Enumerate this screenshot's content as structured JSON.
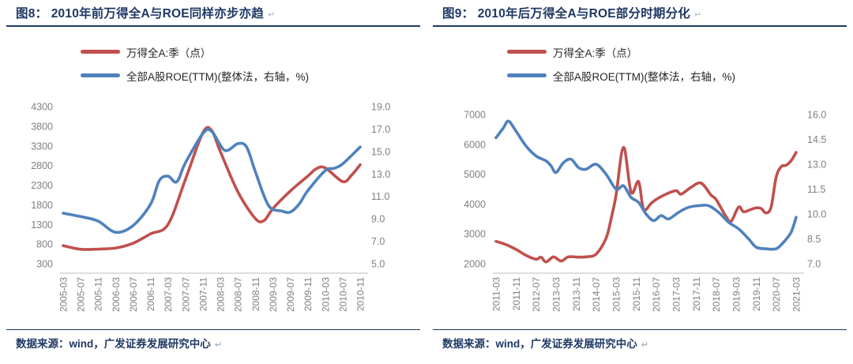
{
  "paragraph_mark": "↵",
  "colors": {
    "title_navy": "#1F3864",
    "series_red": "#C0504D",
    "series_blue": "#4F81BD",
    "tick_gray": "#808080",
    "axis_line_gray": "#D2D2D2"
  },
  "figures": [
    {
      "title": "图8： 2010年前万得全A与ROE同样亦步亦趋",
      "source": "数据来源：wind，广发证券发展研究中心",
      "legend": [
        {
          "label": "万得全A:季（点）",
          "color": "#C0504D"
        },
        {
          "label": "全部A股ROE(TTM)(整体法，右轴，%)",
          "color": "#4F81BD"
        }
      ],
      "chart_data": {
        "type": "line",
        "x_unit": "months since 2005-03",
        "x_max_months": 68,
        "x_tick_step_months": 4,
        "x_tick_labels": [
          "2005-03",
          "2005-07",
          "2005-11",
          "2006-03",
          "2006-07",
          "2006-11",
          "2007-03",
          "2007-07",
          "2007-11",
          "2008-03",
          "2008-07",
          "2008-11",
          "2009-03",
          "2009-07",
          "2009-11",
          "2010-03",
          "2010-07",
          "2010-11"
        ],
        "left_axis": {
          "min": 300,
          "max": 4300,
          "decimals": 0,
          "ticks": [
            300,
            800,
            1300,
            1800,
            2300,
            2800,
            3300,
            3800,
            4300
          ]
        },
        "right_axis": {
          "min": 5.0,
          "max": 19.0,
          "decimals": 1,
          "ticks": [
            5.0,
            7.0,
            9.0,
            11.0,
            13.0,
            15.0,
            17.0,
            19.0
          ]
        },
        "grid": false,
        "legend_position": "top-left",
        "series": [
          {
            "name": "万得全A:季（点）",
            "axis": "left",
            "color": "#C0504D",
            "points": [
              [
                0,
                760
              ],
              [
                4,
                668
              ],
              [
                8,
                672
              ],
              [
                12,
                700
              ],
              [
                16,
                820
              ],
              [
                20,
                1060
              ],
              [
                24,
                1300
              ],
              [
                28,
                2450
              ],
              [
                32,
                3640
              ],
              [
                34,
                3690
              ],
              [
                36,
                3150
              ],
              [
                40,
                2130
              ],
              [
                44,
                1450
              ],
              [
                46,
                1400
              ],
              [
                48,
                1700
              ],
              [
                52,
                2150
              ],
              [
                56,
                2530
              ],
              [
                58,
                2720
              ],
              [
                60,
                2740
              ],
              [
                64,
                2390
              ],
              [
                66,
                2550
              ],
              [
                68,
                2820
              ]
            ]
          },
          {
            "name": "全部A股ROE(TTM)(整体法，右轴，%)",
            "axis": "right",
            "color": "#4F81BD",
            "points": [
              [
                0,
                9.5
              ],
              [
                4,
                9.2
              ],
              [
                8,
                8.8
              ],
              [
                12,
                7.8
              ],
              [
                16,
                8.4
              ],
              [
                20,
                10.3
              ],
              [
                22,
                12.4
              ],
              [
                24,
                12.8
              ],
              [
                26,
                12.3
              ],
              [
                28,
                14.0
              ],
              [
                32,
                16.6
              ],
              [
                34,
                16.8
              ],
              [
                37,
                15.1
              ],
              [
                40,
                15.7
              ],
              [
                42,
                15.4
              ],
              [
                44,
                13.2
              ],
              [
                47,
                10.2
              ],
              [
                50,
                9.7
              ],
              [
                52,
                9.6
              ],
              [
                54,
                10.3
              ],
              [
                56,
                11.5
              ],
              [
                60,
                13.3
              ],
              [
                62,
                13.5
              ],
              [
                64,
                13.9
              ],
              [
                68,
                15.4
              ]
            ]
          }
        ]
      }
    },
    {
      "title": "图9： 2010年后万得全A与ROE部分时期分化",
      "source": "数据来源：wind，广发证券发展研究中心",
      "legend": [
        {
          "label": "万得全A:季（点）",
          "color": "#C0504D"
        },
        {
          "label": "全部A股ROE(TTM)(整体法，右轴，%)",
          "color": "#4F81BD"
        }
      ],
      "chart_data": {
        "type": "line",
        "x_unit": "months since 2011-03",
        "x_max_months": 120,
        "x_tick_step_months": 8,
        "x_tick_labels": [
          "2011-03",
          "2011-11",
          "2012-07",
          "2013-03",
          "2013-11",
          "2014-07",
          "2015-03",
          "2015-11",
          "2016-07",
          "2017-03",
          "2017-11",
          "2018-07",
          "2019-03",
          "2019-11",
          "2020-07",
          "2021-03"
        ],
        "left_axis": {
          "min": 2000,
          "max": 7000,
          "decimals": 0,
          "ticks": [
            2000,
            3000,
            4000,
            5000,
            6000,
            7000
          ]
        },
        "right_axis": {
          "min": 7.0,
          "max": 16.0,
          "decimals": 1,
          "ticks": [
            7.0,
            8.5,
            10.0,
            11.5,
            13.0,
            14.5,
            16.0
          ]
        },
        "grid": false,
        "legend_position": "top-left",
        "series": [
          {
            "name": "万得全A:季（点）",
            "axis": "left",
            "color": "#C0504D",
            "points": [
              [
                0,
                2750
              ],
              [
                4,
                2640
              ],
              [
                8,
                2480
              ],
              [
                12,
                2280
              ],
              [
                16,
                2150
              ],
              [
                18,
                2220
              ],
              [
                20,
                2060
              ],
              [
                23,
                2230
              ],
              [
                26,
                2090
              ],
              [
                29,
                2230
              ],
              [
                33,
                2220
              ],
              [
                36,
                2230
              ],
              [
                40,
                2320
              ],
              [
                44,
                2850
              ],
              [
                46,
                3500
              ],
              [
                48,
                4300
              ],
              [
                51,
                5900
              ],
              [
                54,
                4400
              ],
              [
                57,
                4750
              ],
              [
                59,
                3830
              ],
              [
                62,
                4020
              ],
              [
                64,
                4150
              ],
              [
                68,
                4330
              ],
              [
                72,
                4450
              ],
              [
                74,
                4330
              ],
              [
                78,
                4560
              ],
              [
                82,
                4700
              ],
              [
                86,
                4300
              ],
              [
                88,
                4150
              ],
              [
                92,
                3580
              ],
              [
                94,
                3420
              ],
              [
                97,
                3900
              ],
              [
                99,
                3740
              ],
              [
                102,
                3820
              ],
              [
                104,
                3870
              ],
              [
                106,
                3850
              ],
              [
                108,
                3700
              ],
              [
                110,
                3900
              ],
              [
                112,
                4900
              ],
              [
                114,
                5250
              ],
              [
                116,
                5300
              ],
              [
                118,
                5450
              ],
              [
                120,
                5730
              ]
            ]
          },
          {
            "name": "全部A股ROE(TTM)(整体法，右轴，%)",
            "axis": "right",
            "color": "#4F81BD",
            "points": [
              [
                0,
                14.6
              ],
              [
                3,
                15.2
              ],
              [
                5,
                15.6
              ],
              [
                8,
                15.0
              ],
              [
                12,
                14.1
              ],
              [
                16,
                13.5
              ],
              [
                20,
                13.2
              ],
              [
                22,
                12.9
              ],
              [
                24,
                12.5
              ],
              [
                27,
                13.1
              ],
              [
                30,
                13.3
              ],
              [
                33,
                12.8
              ],
              [
                36,
                12.7
              ],
              [
                40,
                13.0
              ],
              [
                44,
                12.4
              ],
              [
                48,
                11.5
              ],
              [
                51,
                11.7
              ],
              [
                54,
                11.0
              ],
              [
                57,
                10.7
              ],
              [
                60,
                10.0
              ],
              [
                63,
                9.6
              ],
              [
                66,
                9.9
              ],
              [
                69,
                9.7
              ],
              [
                73,
                10.1
              ],
              [
                77,
                10.4
              ],
              [
                81,
                10.5
              ],
              [
                85,
                10.5
              ],
              [
                89,
                10.1
              ],
              [
                93,
                9.5
              ],
              [
                97,
                9.1
              ],
              [
                101,
                8.5
              ],
              [
                104,
                8.0
              ],
              [
                108,
                7.9
              ],
              [
                112,
                7.9
              ],
              [
                115,
                8.3
              ],
              [
                118,
                8.9
              ],
              [
                120,
                9.8
              ]
            ]
          }
        ]
      }
    }
  ]
}
